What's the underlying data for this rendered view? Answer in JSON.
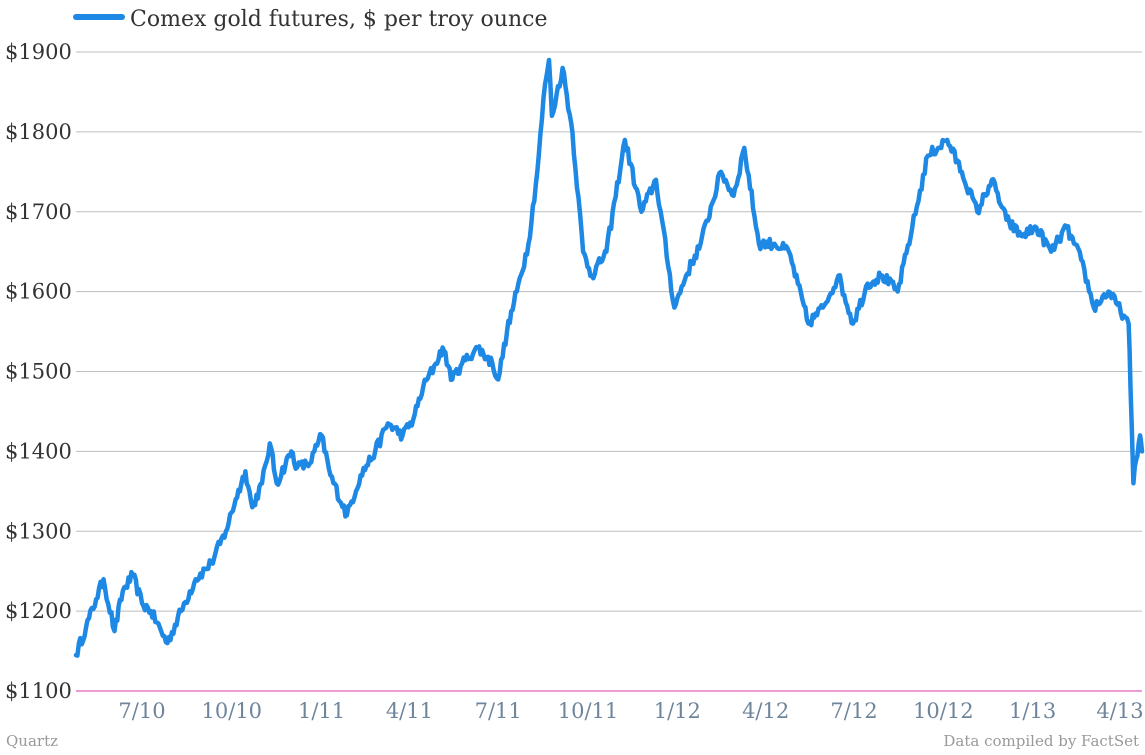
{
  "chart_data": {
    "type": "line",
    "title": "",
    "xlabel": "",
    "ylabel": "",
    "ylim": [
      1100,
      1900
    ],
    "grid": true,
    "legend_position": "top-left",
    "y_tick_labels": [
      "$1100",
      "$1200",
      "$1300",
      "$1400",
      "$1500",
      "$1600",
      "$1700",
      "$1800",
      "$1900"
    ],
    "y_tick_values": [
      1100,
      1200,
      1300,
      1400,
      1500,
      1600,
      1700,
      1800,
      1900
    ],
    "x_tick_labels": [
      "7/10",
      "10/10",
      "1/11",
      "4/11",
      "7/11",
      "10/11",
      "1/12",
      "4/12",
      "7/12",
      "10/12",
      "1/13",
      "4/13"
    ],
    "x_tick_dates": [
      "2010-07-01",
      "2010-10-01",
      "2011-01-01",
      "2011-04-01",
      "2011-07-01",
      "2011-10-01",
      "2012-01-01",
      "2012-04-01",
      "2012-07-01",
      "2012-10-01",
      "2013-01-01",
      "2013-04-01"
    ],
    "series": [
      {
        "name": "Comex gold futures, $ per troy ounce",
        "color": "#1e88e5",
        "x": [
          "2010-04-20",
          "2010-05-01",
          "2010-05-12",
          "2010-05-20",
          "2010-06-01",
          "2010-06-10",
          "2010-06-21",
          "2010-07-01",
          "2010-07-10",
          "2010-07-27",
          "2010-08-10",
          "2010-08-25",
          "2010-09-10",
          "2010-09-25",
          "2010-10-05",
          "2010-10-15",
          "2010-10-22",
          "2010-11-01",
          "2010-11-09",
          "2010-11-16",
          "2010-12-01",
          "2010-12-07",
          "2010-12-20",
          "2011-01-01",
          "2011-01-10",
          "2011-01-27",
          "2011-02-10",
          "2011-02-25",
          "2011-03-10",
          "2011-03-25",
          "2011-04-05",
          "2011-04-15",
          "2011-04-28",
          "2011-05-05",
          "2011-05-15",
          "2011-05-25",
          "2011-06-10",
          "2011-06-25",
          "2011-07-01",
          "2011-07-10",
          "2011-07-20",
          "2011-08-01",
          "2011-08-10",
          "2011-08-18",
          "2011-08-22",
          "2011-08-25",
          "2011-09-05",
          "2011-09-15",
          "2011-09-26",
          "2011-10-05",
          "2011-10-20",
          "2011-11-08",
          "2011-11-25",
          "2011-12-10",
          "2011-12-29",
          "2012-01-10",
          "2012-01-25",
          "2012-02-15",
          "2012-02-28",
          "2012-03-10",
          "2012-03-25",
          "2012-04-10",
          "2012-04-25",
          "2012-05-15",
          "2012-05-30",
          "2012-06-15",
          "2012-06-30",
          "2012-07-15",
          "2012-07-30",
          "2012-08-15",
          "2012-08-30",
          "2012-09-15",
          "2012-10-05",
          "2012-10-20",
          "2012-11-05",
          "2012-11-20",
          "2012-12-05",
          "2012-12-20",
          "2013-01-05",
          "2013-01-20",
          "2013-02-05",
          "2013-02-20",
          "2013-03-05",
          "2013-03-20",
          "2013-04-05",
          "2013-04-10",
          "2013-04-12",
          "2013-04-15",
          "2013-04-18",
          "2013-04-22",
          "2013-04-24"
        ],
        "values": [
          1145,
          1180,
          1215,
          1240,
          1175,
          1225,
          1245,
          1210,
          1200,
          1160,
          1200,
          1240,
          1260,
          1300,
          1340,
          1375,
          1330,
          1360,
          1410,
          1360,
          1400,
          1380,
          1385,
          1420,
          1370,
          1320,
          1370,
          1400,
          1435,
          1420,
          1440,
          1480,
          1510,
          1530,
          1490,
          1510,
          1530,
          1510,
          1490,
          1550,
          1600,
          1660,
          1750,
          1860,
          1890,
          1820,
          1880,
          1800,
          1650,
          1620,
          1650,
          1790,
          1700,
          1740,
          1580,
          1620,
          1660,
          1750,
          1720,
          1780,
          1660,
          1660,
          1650,
          1560,
          1580,
          1620,
          1560,
          1610,
          1620,
          1600,
          1680,
          1770,
          1790,
          1750,
          1700,
          1740,
          1690,
          1670,
          1680,
          1650,
          1680,
          1640,
          1580,
          1600,
          1570,
          1560,
          1480,
          1360,
          1390,
          1420,
          1400
        ]
      }
    ]
  },
  "footer": {
    "source_left": "Quartz",
    "source_right": "Data compiled by FactSet"
  }
}
